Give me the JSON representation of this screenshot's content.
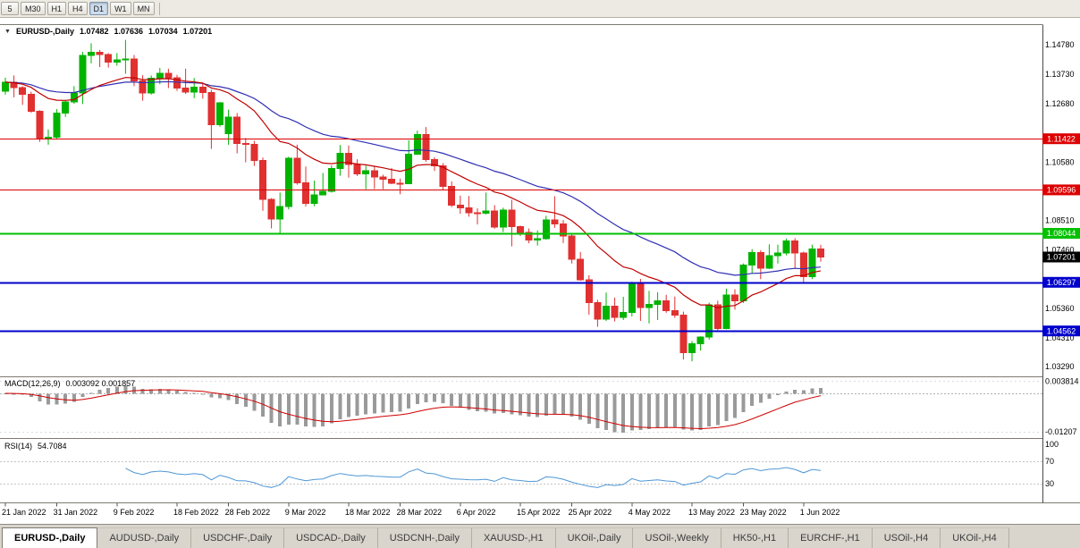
{
  "toolbar": {
    "timeframes": [
      {
        "label": "5",
        "active": false
      },
      {
        "label": "M30",
        "active": false
      },
      {
        "label": "H1",
        "active": false
      },
      {
        "label": "H4",
        "active": false
      },
      {
        "label": "D1",
        "active": true
      },
      {
        "label": "W1",
        "active": false
      },
      {
        "label": "MN",
        "active": false
      }
    ]
  },
  "chart": {
    "header": {
      "symbol": "EURUSD-,Daily",
      "open": "1.07482",
      "high": "1.07636",
      "low": "1.07034",
      "close": "1.07201"
    },
    "price_axis_labels": [
      "1.14780",
      "1.13730",
      "1.12680",
      "1.10580",
      "1.08510",
      "1.07460",
      "1.05360",
      "1.04310",
      "1.03290"
    ],
    "levels": [
      {
        "price": 1.11422,
        "label": "1.11422",
        "color": "#dd0000",
        "width": 1.4,
        "type": "resistance"
      },
      {
        "price": 1.09596,
        "label": "1.09596",
        "color": "#dd0000",
        "width": 1.4,
        "type": "resistance"
      },
      {
        "price": 1.08044,
        "label": "1.08044",
        "color": "#00c000",
        "width": 2,
        "type": "level"
      },
      {
        "price": 1.06297,
        "label": "1.06297",
        "color": "#0000cc",
        "width": 2,
        "type": "support"
      },
      {
        "price": 1.04562,
        "label": "1.04562",
        "color": "#0000cc",
        "width": 2,
        "type": "support"
      }
    ],
    "current_price": {
      "price": 1.07201,
      "label": "1.07201",
      "color": "#000000"
    }
  },
  "macd": {
    "label": "MACD(12,26,9)",
    "values": "0.003092 0.001857",
    "axis_labels": [
      {
        "value": 0.003814,
        "label": "0.003814"
      },
      {
        "value": -0.01207,
        "label": "-0.01207"
      }
    ]
  },
  "rsi": {
    "label": "RSI(14)",
    "value": "54.7084",
    "axis_labels": [
      {
        "value": 100,
        "label": "100"
      },
      {
        "value": 70,
        "label": "70"
      },
      {
        "value": 30,
        "label": "30"
      }
    ]
  },
  "chart_data": {
    "type": "candlestick",
    "symbol": "EURUSD-",
    "timeframe": "Daily",
    "y_range": [
      1.0294,
      1.1548
    ],
    "colors": {
      "bull": "#00b300",
      "bear": "#e03030",
      "ma_fast": "#c00000",
      "ma_slow": "#3030b4",
      "macd_hist": "#9a9a9a",
      "macd_signal": "#d00000",
      "rsi_line": "#4f97d6"
    },
    "indicators": {
      "ma_fast": {
        "period": 16
      },
      "ma_slow": {
        "period": 34
      },
      "macd": {
        "fast": 12,
        "slow": 26,
        "signal": 9,
        "range": [
          -0.0135,
          0.0045
        ]
      },
      "rsi": {
        "period": 14,
        "levels": [
          70,
          30
        ],
        "range": [
          0,
          100
        ]
      }
    },
    "date_ticks": [
      {
        "i": 0,
        "label": "21 Jan 2022"
      },
      {
        "i": 6,
        "label": "31 Jan 2022"
      },
      {
        "i": 13,
        "label": "9 Feb 2022"
      },
      {
        "i": 20,
        "label": "18 Feb 2022"
      },
      {
        "i": 26,
        "label": "28 Feb 2022"
      },
      {
        "i": 33,
        "label": "9 Mar 2022"
      },
      {
        "i": 40,
        "label": "18 Mar 2022"
      },
      {
        "i": 46,
        "label": "28 Mar 2022"
      },
      {
        "i": 53,
        "label": "6 Apr 2022"
      },
      {
        "i": 60,
        "label": "15 Apr 2022"
      },
      {
        "i": 66,
        "label": "25 Apr 2022"
      },
      {
        "i": 73,
        "label": "4 May 2022"
      },
      {
        "i": 80,
        "label": "13 May 2022"
      },
      {
        "i": 86,
        "label": "23 May 2022"
      },
      {
        "i": 93,
        "label": "1 Jun 2022"
      }
    ],
    "ohlc": [
      [
        1.1312,
        1.136,
        1.13,
        1.1344
      ],
      [
        1.1344,
        1.1368,
        1.129,
        1.1325
      ],
      [
        1.1325,
        1.133,
        1.1263,
        1.13
      ],
      [
        1.13,
        1.131,
        1.1235,
        1.124
      ],
      [
        1.124,
        1.1244,
        1.1131,
        1.1144
      ],
      [
        1.1144,
        1.1175,
        1.1121,
        1.1148
      ],
      [
        1.1148,
        1.1248,
        1.114,
        1.1234
      ],
      [
        1.1234,
        1.1279,
        1.122,
        1.1273
      ],
      [
        1.1273,
        1.133,
        1.1267,
        1.1305
      ],
      [
        1.1305,
        1.1452,
        1.1266,
        1.1439
      ],
      [
        1.1439,
        1.1483,
        1.1411,
        1.145
      ],
      [
        1.145,
        1.1459,
        1.1398,
        1.1443
      ],
      [
        1.1443,
        1.1448,
        1.1396,
        1.1416
      ],
      [
        1.1416,
        1.1448,
        1.1403,
        1.1424
      ],
      [
        1.1424,
        1.1495,
        1.1374,
        1.1426
      ],
      [
        1.1426,
        1.1441,
        1.133,
        1.1348
      ],
      [
        1.1348,
        1.1369,
        1.1278,
        1.1306
      ],
      [
        1.1306,
        1.1368,
        1.13,
        1.1358
      ],
      [
        1.1358,
        1.1395,
        1.1337,
        1.1375
      ],
      [
        1.1375,
        1.1392,
        1.1323,
        1.136
      ],
      [
        1.136,
        1.137,
        1.1313,
        1.1323
      ],
      [
        1.1323,
        1.1392,
        1.1302,
        1.1309
      ],
      [
        1.1309,
        1.1359,
        1.1287,
        1.1327
      ],
      [
        1.1327,
        1.1343,
        1.1285,
        1.1307
      ],
      [
        1.1307,
        1.1317,
        1.1106,
        1.1193
      ],
      [
        1.1193,
        1.1273,
        1.1185,
        1.127
      ],
      [
        1.116,
        1.1246,
        1.112,
        1.1219
      ],
      [
        1.1219,
        1.1234,
        1.109,
        1.1125
      ],
      [
        1.1125,
        1.1145,
        1.1058,
        1.1122
      ],
      [
        1.1122,
        1.1135,
        1.1045,
        1.1065
      ],
      [
        1.1065,
        1.1075,
        1.0885,
        1.0926
      ],
      [
        1.0926,
        1.093,
        1.0822,
        1.0855
      ],
      [
        1.0855,
        1.095,
        1.0806,
        1.09
      ],
      [
        1.09,
        1.1078,
        1.089,
        1.1073
      ],
      [
        1.1073,
        1.1121,
        1.0978,
        1.0985
      ],
      [
        1.0985,
        1.1043,
        1.09,
        1.0911
      ],
      [
        1.0911,
        1.0993,
        1.0901,
        1.0942
      ],
      [
        1.0942,
        1.102,
        1.094,
        1.0955
      ],
      [
        1.0955,
        1.1047,
        1.095,
        1.1036
      ],
      [
        1.1036,
        1.112,
        1.101,
        1.109
      ],
      [
        1.109,
        1.1118,
        1.1003,
        1.1051
      ],
      [
        1.1051,
        1.1069,
        1.1009,
        1.1016
      ],
      [
        1.1016,
        1.1046,
        1.0962,
        1.1028
      ],
      [
        1.1028,
        1.1043,
        1.0963,
        1.1005
      ],
      [
        1.1005,
        1.1014,
        1.0962,
        1.0997
      ],
      [
        1.0997,
        1.1038,
        1.098,
        1.0983
      ],
      [
        1.0983,
        1.1,
        1.0944,
        1.0982
      ],
      [
        1.0982,
        1.1137,
        1.098,
        1.1087
      ],
      [
        1.1087,
        1.1171,
        1.1084,
        1.1157
      ],
      [
        1.1157,
        1.1184,
        1.106,
        1.1067
      ],
      [
        1.1067,
        1.1076,
        1.1027,
        1.1046
      ],
      [
        1.1046,
        1.1055,
        1.096,
        1.0972
      ],
      [
        1.0972,
        1.099,
        1.0898,
        1.0905
      ],
      [
        1.0905,
        1.0939,
        1.0874,
        1.0895
      ],
      [
        1.0895,
        1.0938,
        1.0864,
        1.0878
      ],
      [
        1.0878,
        1.0894,
        1.0836,
        1.0876
      ],
      [
        1.0876,
        1.095,
        1.0872,
        1.0884
      ],
      [
        1.0884,
        1.0905,
        1.0821,
        1.0827
      ],
      [
        1.0827,
        1.0896,
        1.0809,
        1.0888
      ],
      [
        1.0888,
        1.0924,
        1.0758,
        1.0828
      ],
      [
        1.0828,
        1.0832,
        1.0795,
        1.0807
      ],
      [
        1.0807,
        1.0822,
        1.0769,
        1.078
      ],
      [
        1.078,
        1.0815,
        1.0761,
        1.0785
      ],
      [
        1.0785,
        1.0867,
        1.0782,
        1.0853
      ],
      [
        1.0853,
        1.0937,
        1.0824,
        1.0838
      ],
      [
        1.0838,
        1.0852,
        1.077,
        1.0795
      ],
      [
        1.0795,
        1.0805,
        1.0697,
        1.0712
      ],
      [
        1.0712,
        1.0738,
        1.0635,
        1.0638
      ],
      [
        1.0638,
        1.0655,
        1.0514,
        1.0557
      ],
      [
        1.0557,
        1.0567,
        1.0471,
        1.0498
      ],
      [
        1.0498,
        1.0593,
        1.0492,
        1.0545
      ],
      [
        1.0545,
        1.0575,
        1.049,
        1.0505
      ],
      [
        1.0505,
        1.0578,
        1.0495,
        1.0522
      ],
      [
        1.0522,
        1.0632,
        1.0508,
        1.0622
      ],
      [
        1.0622,
        1.0642,
        1.0492,
        1.054
      ],
      [
        1.054,
        1.0599,
        1.0483,
        1.0551
      ],
      [
        1.0551,
        1.0594,
        1.0495,
        1.0563
      ],
      [
        1.0563,
        1.0585,
        1.0521,
        1.0529
      ],
      [
        1.0529,
        1.0579,
        1.0503,
        1.0513
      ],
      [
        1.0513,
        1.0525,
        1.0354,
        1.0379
      ],
      [
        1.0379,
        1.042,
        1.0348,
        1.0411
      ],
      [
        1.0411,
        1.0437,
        1.0386,
        1.0434
      ],
      [
        1.0434,
        1.0557,
        1.0425,
        1.0549
      ],
      [
        1.0549,
        1.0564,
        1.0459,
        1.0465
      ],
      [
        1.0465,
        1.0607,
        1.0462,
        1.0585
      ],
      [
        1.0585,
        1.0605,
        1.0532,
        1.0563
      ],
      [
        1.0563,
        1.0697,
        1.0556,
        1.0691
      ],
      [
        1.0691,
        1.0748,
        1.066,
        1.0736
      ],
      [
        1.0736,
        1.0744,
        1.0641,
        1.068
      ],
      [
        1.068,
        1.0765,
        1.0677,
        1.0725
      ],
      [
        1.0725,
        1.0764,
        1.0697,
        1.0735
      ],
      [
        1.0735,
        1.0786,
        1.0726,
        1.0777
      ],
      [
        1.0777,
        1.0787,
        1.0678,
        1.0734
      ],
      [
        1.0734,
        1.0739,
        1.0627,
        1.065
      ],
      [
        1.065,
        1.0764,
        1.0641,
        1.0748
      ],
      [
        1.07482,
        1.07636,
        1.07034,
        1.07201
      ]
    ]
  },
  "tabs": [
    {
      "label": "EURUSD-,Daily",
      "active": true
    },
    {
      "label": "AUDUSD-,Daily",
      "active": false
    },
    {
      "label": "USDCHF-,Daily",
      "active": false
    },
    {
      "label": "USDCAD-,Daily",
      "active": false
    },
    {
      "label": "USDCNH-,Daily",
      "active": false
    },
    {
      "label": "XAUUSD-,H1",
      "active": false
    },
    {
      "label": "UKOil-,Daily",
      "active": false
    },
    {
      "label": "USOil-,Weekly",
      "active": false
    },
    {
      "label": "HK50-,H1",
      "active": false
    },
    {
      "label": "EURCHF-,H1",
      "active": false
    },
    {
      "label": "USOil-,H4",
      "active": false
    },
    {
      "label": "UKOil-,H4",
      "active": false
    }
  ]
}
